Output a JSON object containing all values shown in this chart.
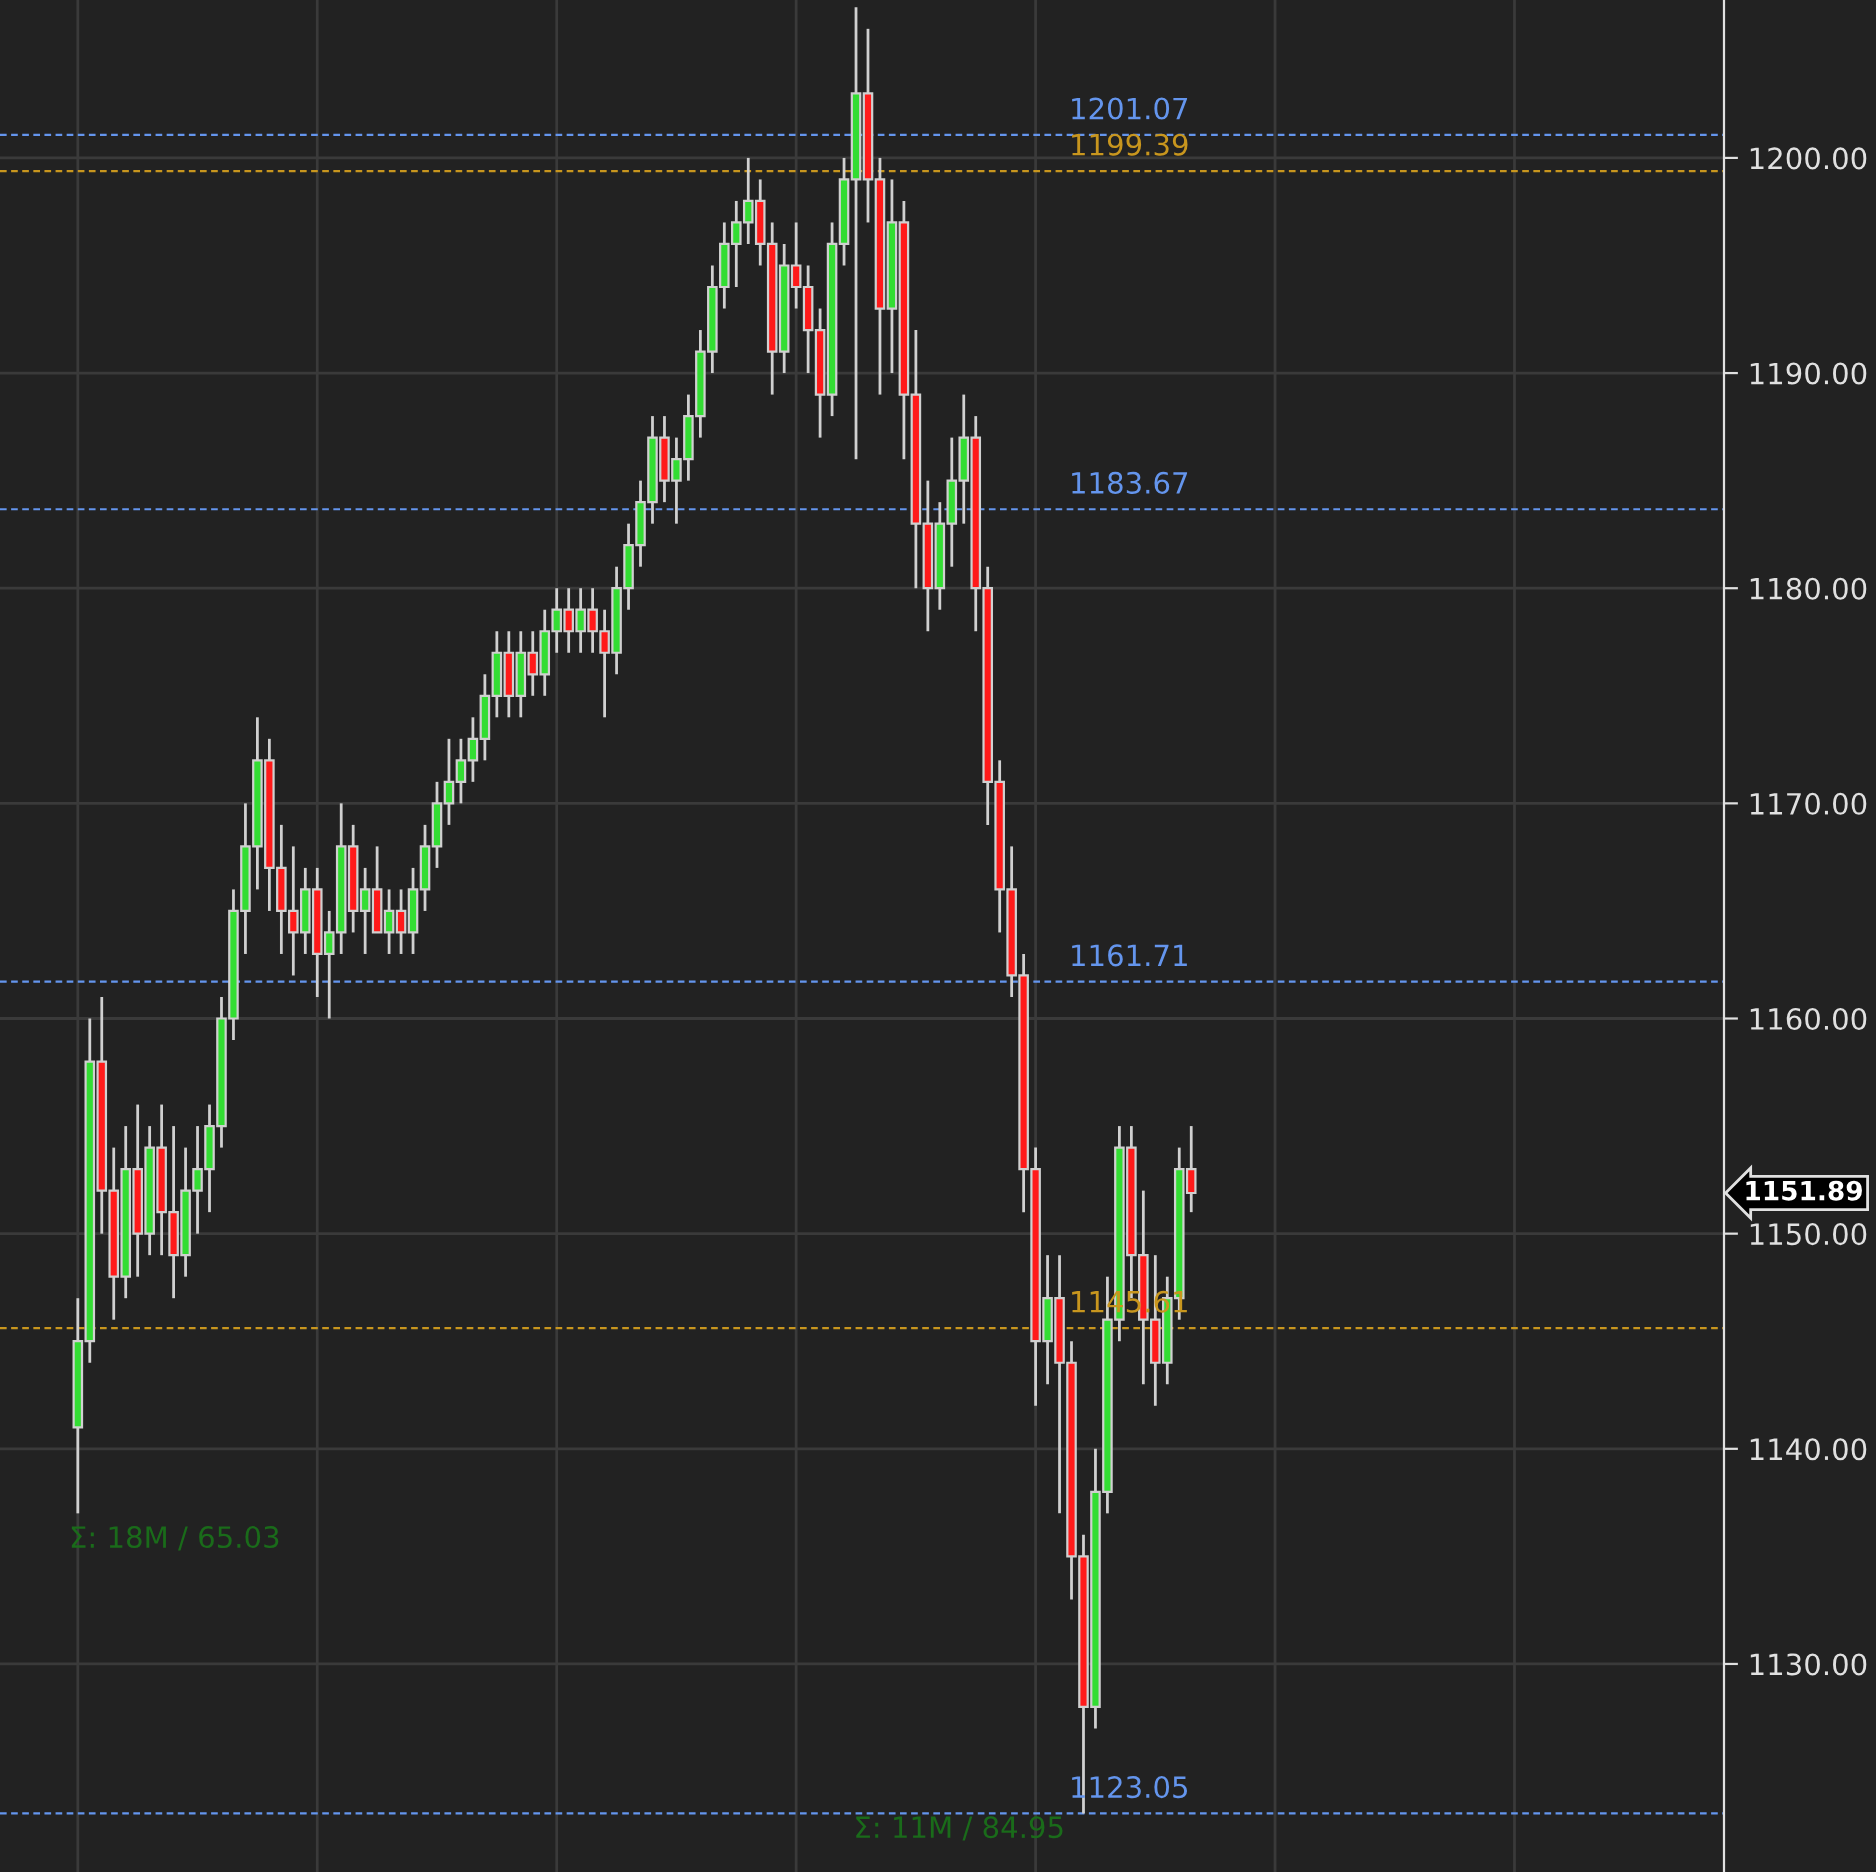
{
  "chart_data": {
    "type": "candlestick",
    "categories": [
      null,
      null,
      null,
      null,
      null,
      null,
      null,
      null,
      null,
      null,
      null,
      null,
      null,
      null,
      null,
      null,
      null,
      null,
      null,
      null,
      null,
      null,
      null,
      null,
      null,
      null,
      null,
      null,
      null,
      null,
      null,
      null,
      null,
      null,
      null,
      null,
      null,
      null,
      null,
      null,
      null,
      null,
      null,
      null,
      null,
      null,
      null,
      null,
      null,
      null,
      null,
      null,
      null,
      null,
      null,
      null,
      null,
      null,
      null,
      null,
      null,
      null,
      null,
      null,
      null,
      null,
      null,
      null,
      null,
      null,
      null,
      null,
      null,
      null,
      null,
      null,
      null,
      null,
      null,
      null,
      null,
      null,
      null,
      null,
      null,
      null,
      null,
      null,
      null,
      null,
      null,
      null,
      null,
      null,
      null,
      null,
      null,
      null,
      null,
      null,
      null,
      null,
      null,
      null,
      null,
      null,
      null,
      null,
      null,
      null,
      null,
      null,
      null,
      null,
      null,
      null,
      null,
      null,
      null,
      null,
      null,
      null,
      null,
      null,
      null,
      null,
      null,
      null,
      null,
      null,
      null,
      null,
      null,
      null,
      null,
      null,
      null,
      null,
      null,
      null,
      null,
      null,
      null,
      null
    ],
    "ohlc": [
      null,
      null,
      null,
      null,
      null,
      null,
      [
        1141,
        1147,
        1137,
        1145
      ],
      [
        1145,
        1160,
        1144,
        1158
      ],
      [
        1158,
        1161,
        1150,
        1152
      ],
      [
        1152,
        1154,
        1146,
        1148
      ],
      [
        1148,
        1155,
        1147,
        1153
      ],
      [
        1153,
        1156,
        1148,
        1150
      ],
      [
        1150,
        1155,
        1149,
        1154
      ],
      [
        1154,
        1156,
        1149,
        1151
      ],
      [
        1151,
        1155,
        1147,
        1149
      ],
      [
        1149,
        1154,
        1148,
        1152
      ],
      [
        1152,
        1155,
        1150,
        1153
      ],
      [
        1153,
        1156,
        1151,
        1155
      ],
      [
        1155,
        1161,
        1154,
        1160
      ],
      [
        1160,
        1166,
        1159,
        1165
      ],
      [
        1165,
        1170,
        1163,
        1168
      ],
      [
        1168,
        1174,
        1166,
        1172
      ],
      [
        1172,
        1173,
        1165,
        1167
      ],
      [
        1167,
        1169,
        1163,
        1165
      ],
      [
        1165,
        1168,
        1162,
        1164
      ],
      [
        1164,
        1167,
        1163,
        1166
      ],
      [
        1166,
        1167,
        1161,
        1163
      ],
      [
        1163,
        1165,
        1160,
        1164
      ],
      [
        1164,
        1170,
        1163,
        1168
      ],
      [
        1168,
        1169,
        1164,
        1165
      ],
      [
        1165,
        1167,
        1163,
        1166
      ],
      [
        1166,
        1168,
        1164,
        1164
      ],
      [
        1164,
        1166,
        1163,
        1165
      ],
      [
        1165,
        1166,
        1163,
        1164
      ],
      [
        1164,
        1167,
        1163,
        1166
      ],
      [
        1166,
        1169,
        1165,
        1168
      ],
      [
        1168,
        1171,
        1167,
        1170
      ],
      [
        1170,
        1173,
        1169,
        1171
      ],
      [
        1171,
        1173,
        1170,
        1172
      ],
      [
        1172,
        1174,
        1171,
        1173
      ],
      [
        1173,
        1176,
        1172,
        1175
      ],
      [
        1175,
        1178,
        1174,
        1177
      ],
      [
        1177,
        1178,
        1174,
        1175
      ],
      [
        1175,
        1178,
        1174,
        1177
      ],
      [
        1177,
        1178,
        1175,
        1176
      ],
      [
        1176,
        1179,
        1175,
        1178
      ],
      [
        1178,
        1180,
        1177,
        1179
      ],
      [
        1179,
        1180,
        1177,
        1178
      ],
      [
        1178,
        1180,
        1177,
        1179
      ],
      [
        1179,
        1180,
        1177,
        1178
      ],
      [
        1178,
        1179,
        1174,
        1177
      ],
      [
        1177,
        1181,
        1176,
        1180
      ],
      [
        1180,
        1183,
        1179,
        1182
      ],
      [
        1182,
        1185,
        1181,
        1184
      ],
      [
        1184,
        1188,
        1183,
        1187
      ],
      [
        1187,
        1188,
        1184,
        1185
      ],
      [
        1185,
        1187,
        1183,
        1186
      ],
      [
        1186,
        1189,
        1185,
        1188
      ],
      [
        1188,
        1192,
        1187,
        1191
      ],
      [
        1191,
        1195,
        1190,
        1194
      ],
      [
        1194,
        1197,
        1193,
        1196
      ],
      [
        1196,
        1198,
        1194,
        1197
      ],
      [
        1197,
        1200,
        1196,
        1198
      ],
      [
        1198,
        1199,
        1195,
        1196
      ],
      [
        1196,
        1197,
        1189,
        1191
      ],
      [
        1191,
        1196,
        1190,
        1195
      ],
      [
        1195,
        1197,
        1193,
        1194
      ],
      [
        1194,
        1195,
        1190,
        1192
      ],
      [
        1192,
        1193,
        1187,
        1189
      ],
      [
        1189,
        1197,
        1188,
        1196
      ],
      [
        1196,
        1200,
        1195,
        1199
      ],
      [
        1199,
        1207,
        1186,
        1203
      ],
      [
        1203,
        1206,
        1197,
        1199
      ],
      [
        1199,
        1200,
        1189,
        1193
      ],
      [
        1193,
        1199,
        1190,
        1197
      ],
      [
        1197,
        1198,
        1186,
        1189
      ],
      [
        1189,
        1192,
        1180,
        1183
      ],
      [
        1183,
        1185,
        1178,
        1180
      ],
      [
        1180,
        1184,
        1179,
        1183
      ],
      [
        1183,
        1187,
        1181,
        1185
      ],
      [
        1185,
        1189,
        1183,
        1187
      ],
      [
        1187,
        1188,
        1178,
        1180
      ],
      [
        1180,
        1181,
        1169,
        1171
      ],
      [
        1171,
        1172,
        1164,
        1166
      ],
      [
        1166,
        1168,
        1161,
        1162
      ],
      [
        1162,
        1163,
        1151,
        1153
      ],
      [
        1153,
        1154,
        1142,
        1145
      ],
      [
        1145,
        1149,
        1143,
        1147
      ],
      [
        1147,
        1149,
        1137,
        1144
      ],
      [
        1144,
        1145,
        1133,
        1135
      ],
      [
        1135,
        1136,
        1123.05,
        1128
      ],
      [
        1128,
        1140,
        1127,
        1138
      ],
      [
        1138,
        1148,
        1137,
        1146
      ],
      [
        1146,
        1155,
        1145,
        1154
      ],
      [
        1154,
        1155,
        1147,
        1149
      ],
      [
        1149,
        1152,
        1143,
        1146
      ],
      [
        1146,
        1149,
        1142,
        1144
      ],
      [
        1144,
        1148,
        1143,
        1147
      ],
      [
        1147,
        1154,
        1146,
        1153
      ],
      [
        1153,
        1155,
        1151,
        1151.89
      ],
      null,
      null,
      null,
      null,
      null,
      null,
      null,
      null,
      null,
      null,
      null,
      null,
      null,
      null,
      null,
      null,
      null,
      null,
      null,
      null,
      null,
      null,
      null,
      null,
      null,
      null,
      null,
      null,
      null,
      null,
      null,
      null,
      null,
      null,
      null,
      null,
      null,
      null,
      null,
      null,
      null,
      null,
      null,
      null
    ],
    "ylim": [
      1120.33,
      1207.34
    ],
    "yticks": [
      {
        "value": 1130,
        "label": "1130.00"
      },
      {
        "value": 1140,
        "label": "1140.00"
      },
      {
        "value": 1150,
        "label": "1150.00"
      },
      {
        "value": 1160,
        "label": "1160.00"
      },
      {
        "value": 1170,
        "label": "1170.00"
      },
      {
        "value": 1180,
        "label": "1180.00"
      },
      {
        "value": 1190,
        "label": "1190.00"
      },
      {
        "value": 1200,
        "label": "1200.00"
      }
    ],
    "ref_lines": [
      {
        "axis": "y",
        "value": 1201.07,
        "label": "1201.07",
        "color": "#6495ed",
        "line_style": "dashed"
      },
      {
        "axis": "y",
        "value": 1199.39,
        "label": "1199.39",
        "color": "#c8961e",
        "line_style": "dashed"
      },
      {
        "axis": "y",
        "value": 1183.67,
        "label": "1183.67",
        "color": "#6495ed",
        "line_style": "dashed"
      },
      {
        "axis": "y",
        "value": 1161.71,
        "label": "1161.71",
        "color": "#6495ed",
        "line_style": "dashed"
      },
      {
        "axis": "y",
        "value": 1145.61,
        "label": "1145.61",
        "color": "#c8961e",
        "line_style": "dashed"
      },
      {
        "axis": "y",
        "value": 1123.05,
        "label": "1123.05",
        "color": "#6495ed",
        "line_style": "dashed"
      }
    ],
    "annotations": [
      "1151.89",
      "Σ: 18M / 65.03",
      "Σ: 11M / 84.95"
    ],
    "grid": true,
    "tick_labels": "y"
  }
}
